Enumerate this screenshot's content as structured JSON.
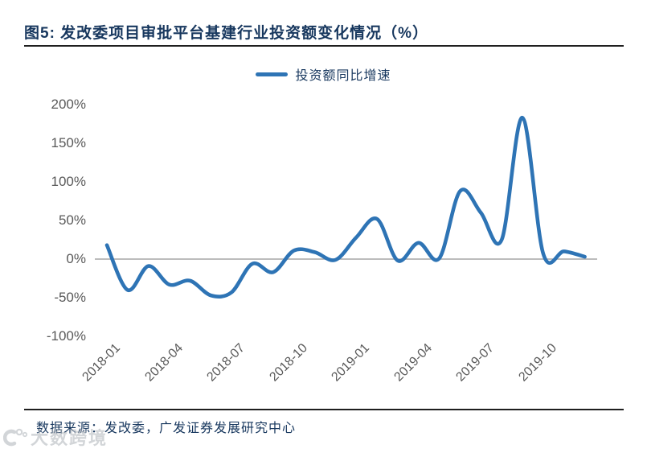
{
  "title": {
    "label": "图5:  发改委项目审批平台基建行业投资额变化情况（%）"
  },
  "legend": {
    "label": "投资额同比增速"
  },
  "source": {
    "label": "数据来源：发改委，广发证券发展研究中心"
  },
  "watermark": {
    "label": "大数跨境",
    "icon": "ring-badge-icon"
  },
  "colors": {
    "navy": "#17375E",
    "line_blue": "#2E74B5",
    "axis_text_gray": "#595959",
    "gridline_gray": "#A6A6A6",
    "rule_dark": "#1F1F1F",
    "watermark_gray": "#AEB4BA"
  },
  "chart_data": {
    "type": "line",
    "title": "发改委项目审批平台基建行业投资额变化情况（%）",
    "x": [
      "2018-01",
      "2018-02",
      "2018-03",
      "2018-04",
      "2018-05",
      "2018-06",
      "2018-07",
      "2018-08",
      "2018-09",
      "2018-10",
      "2018-11",
      "2018-12",
      "2019-01",
      "2019-02",
      "2019-03",
      "2019-04",
      "2019-05",
      "2019-06",
      "2019-07",
      "2019-08",
      "2019-09",
      "2019-10",
      "2019-11",
      "2019-12"
    ],
    "series": [
      {
        "name": "投资额同比增速",
        "values": [
          18,
          -40,
          -9,
          -33,
          -28,
          -47,
          -43,
          -6,
          -17,
          11,
          9,
          -1,
          28,
          52,
          -2,
          21,
          1,
          88,
          60,
          25,
          183,
          7,
          10,
          3
        ]
      }
    ],
    "unit": "%",
    "ylim": [
      -100,
      200
    ],
    "y_ticks": [
      {
        "value": 200,
        "label": "200%"
      },
      {
        "value": 150,
        "label": "150%"
      },
      {
        "value": 100,
        "label": "100%"
      },
      {
        "value": 50,
        "label": "50%"
      },
      {
        "value": 0,
        "label": "0%"
      },
      {
        "value": -50,
        "label": "-50%"
      },
      {
        "value": -100,
        "label": "-100%"
      }
    ],
    "x_tick_labels": [
      "2018-01",
      "2018-04",
      "2018-07",
      "2018-10",
      "2019-01",
      "2019-04",
      "2019-07",
      "2019-10"
    ],
    "grid": "horizontal line at 0% only",
    "legend_position": "top-center",
    "line_smoothing": "smoothed spline"
  }
}
